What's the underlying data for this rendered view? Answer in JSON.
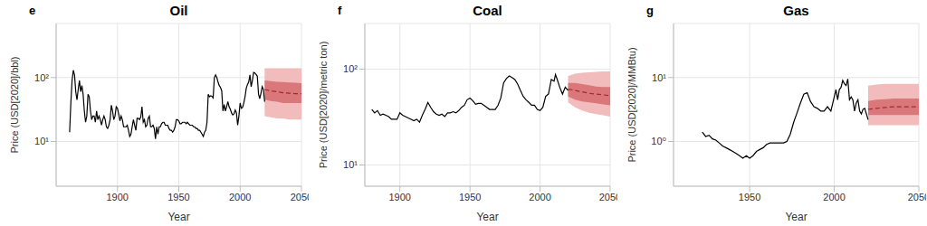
{
  "chart_data": [
    {
      "type": "line",
      "panel": "e",
      "title": "Oil",
      "x_label": "Year",
      "y_label": "Price (USD[2020]/bbl)",
      "log": "y",
      "grid": true,
      "xlim": [
        1850,
        2050
      ],
      "xticks": [
        1900,
        1950,
        2000,
        2050
      ],
      "ylim": [
        2,
        700
      ],
      "yticks": [
        {
          "value": 10,
          "label": "10¹"
        },
        {
          "value": 100,
          "label": "10²"
        }
      ],
      "color": "#000000",
      "x": [
        1861,
        1862,
        1863,
        1864,
        1865,
        1866,
        1867,
        1868,
        1869,
        1870,
        1871,
        1872,
        1873,
        1874,
        1875,
        1876,
        1877,
        1878,
        1879,
        1880,
        1881,
        1882,
        1883,
        1884,
        1885,
        1886,
        1887,
        1888,
        1889,
        1890,
        1891,
        1892,
        1893,
        1894,
        1895,
        1896,
        1897,
        1898,
        1899,
        1900,
        1901,
        1902,
        1903,
        1904,
        1905,
        1906,
        1907,
        1908,
        1909,
        1910,
        1911,
        1912,
        1913,
        1914,
        1915,
        1916,
        1917,
        1918,
        1919,
        1920,
        1921,
        1922,
        1923,
        1924,
        1925,
        1926,
        1927,
        1928,
        1929,
        1930,
        1931,
        1932,
        1933,
        1934,
        1935,
        1936,
        1937,
        1938,
        1939,
        1940,
        1941,
        1942,
        1943,
        1944,
        1945,
        1946,
        1947,
        1948,
        1949,
        1950,
        1951,
        1952,
        1953,
        1954,
        1955,
        1956,
        1957,
        1958,
        1959,
        1960,
        1961,
        1962,
        1963,
        1964,
        1965,
        1966,
        1967,
        1968,
        1969,
        1970,
        1971,
        1972,
        1973,
        1974,
        1975,
        1976,
        1977,
        1978,
        1979,
        1980,
        1981,
        1982,
        1983,
        1984,
        1985,
        1986,
        1987,
        1988,
        1989,
        1990,
        1991,
        1992,
        1993,
        1994,
        1995,
        1996,
        1997,
        1998,
        1999,
        2000,
        2001,
        2002,
        2003,
        2004,
        2005,
        2006,
        2007,
        2008,
        2009,
        2010,
        2011,
        2012,
        2013,
        2014,
        2015,
        2016,
        2017,
        2018,
        2019,
        2020
      ],
      "values": [
        14,
        40,
        90,
        130,
        110,
        60,
        45,
        65,
        90,
        60,
        75,
        55,
        30,
        20,
        25,
        55,
        50,
        30,
        22,
        25,
        25,
        20,
        30,
        22,
        25,
        22,
        18,
        22,
        25,
        22,
        17,
        16,
        18,
        22,
        37,
        30,
        22,
        25,
        35,
        33,
        27,
        21,
        25,
        22,
        17,
        17,
        17,
        18,
        15,
        12,
        13,
        17,
        22,
        18,
        15,
        23,
        23,
        22,
        24,
        35,
        20,
        22,
        17,
        18,
        23,
        25,
        17,
        17,
        18,
        16,
        11,
        17,
        13,
        17,
        17,
        19,
        20,
        20,
        18,
        18,
        18,
        16,
        15,
        15,
        14,
        15,
        17,
        22,
        22,
        21,
        19,
        19,
        20,
        20,
        20,
        19,
        20,
        19,
        18,
        18,
        18,
        17,
        17,
        16,
        16,
        15,
        15,
        14,
        13,
        12,
        14,
        15,
        20,
        55,
        50,
        52,
        51,
        48,
        100,
        110,
        100,
        85,
        75,
        70,
        62,
        30,
        38,
        30,
        35,
        42,
        35,
        32,
        28,
        26,
        27,
        31,
        28,
        18,
        25,
        40,
        33,
        34,
        40,
        50,
        68,
        78,
        85,
        110,
        72,
        90,
        120,
        118,
        112,
        105,
        55,
        47,
        57,
        72,
        65,
        42
      ],
      "forecast": {
        "x": [
          2020,
          2025,
          2030,
          2035,
          2040,
          2045,
          2050
        ],
        "values": [
          65,
          62,
          60,
          58,
          57,
          56,
          56
        ],
        "color": "#a52a2a",
        "line_style": "dashed",
        "band_inner": {
          "low": [
            45,
            43,
            42,
            40,
            40,
            40,
            40
          ],
          "high": [
            90,
            88,
            86,
            85,
            84,
            83,
            82
          ],
          "color": "#d9777b"
        },
        "band_outer": {
          "low": [
            25,
            24,
            23,
            23,
            22,
            22,
            22
          ],
          "high": [
            140,
            140,
            140,
            140,
            140,
            140,
            140
          ],
          "color": "#f2bcbc"
        }
      }
    },
    {
      "type": "line",
      "panel": "f",
      "title": "Coal",
      "x_label": "Year",
      "y_label": "Price (USD[2020]/metric ton)",
      "log": "y",
      "grid": true,
      "xlim": [
        1875,
        2050
      ],
      "xticks": [
        1900,
        1950,
        2000,
        2050
      ],
      "ylim": [
        6,
        300
      ],
      "yticks": [
        {
          "value": 10,
          "label": "10¹"
        },
        {
          "value": 100,
          "label": "10²"
        }
      ],
      "color": "#000000",
      "x": [
        1880,
        1882,
        1884,
        1886,
        1888,
        1890,
        1892,
        1894,
        1896,
        1898,
        1900,
        1902,
        1904,
        1906,
        1908,
        1910,
        1912,
        1914,
        1916,
        1918,
        1920,
        1922,
        1924,
        1926,
        1928,
        1930,
        1932,
        1934,
        1936,
        1938,
        1940,
        1942,
        1944,
        1946,
        1948,
        1950,
        1952,
        1954,
        1956,
        1958,
        1960,
        1962,
        1964,
        1966,
        1968,
        1970,
        1972,
        1974,
        1976,
        1978,
        1980,
        1982,
        1984,
        1986,
        1988,
        1990,
        1992,
        1994,
        1996,
        1998,
        2000,
        2002,
        2004,
        2006,
        2008,
        2010,
        2011,
        2012,
        2014,
        2016,
        2018,
        2020
      ],
      "values": [
        38,
        35,
        37,
        33,
        34,
        33,
        32,
        30,
        30,
        30,
        35,
        33,
        32,
        31,
        30,
        29,
        30,
        28,
        33,
        38,
        45,
        40,
        36,
        34,
        33,
        34,
        32,
        35,
        35,
        36,
        35,
        37,
        40,
        42,
        48,
        50,
        47,
        43,
        44,
        44,
        42,
        40,
        38,
        38,
        38,
        42,
        50,
        72,
        80,
        85,
        82,
        78,
        70,
        60,
        52,
        48,
        45,
        42,
        42,
        38,
        37,
        40,
        52,
        55,
        78,
        75,
        88,
        80,
        65,
        55,
        65,
        60
      ],
      "forecast": {
        "x": [
          2020,
          2025,
          2030,
          2035,
          2040,
          2045,
          2050
        ],
        "values": [
          62,
          60,
          58,
          56,
          55,
          54,
          53
        ],
        "color": "#a52a2a",
        "line_style": "dashed",
        "band_inner": {
          "low": [
            52,
            48,
            46,
            45,
            44,
            43,
            42
          ],
          "high": [
            72,
            72,
            70,
            68,
            66,
            65,
            65
          ],
          "color": "#d9777b"
        },
        "band_outer": {
          "low": [
            45,
            40,
            37,
            35,
            34,
            33,
            32
          ],
          "high": [
            85,
            90,
            92,
            93,
            94,
            95,
            95
          ],
          "color": "#f2bcbc"
        }
      }
    },
    {
      "type": "line",
      "panel": "g",
      "title": "Gas",
      "x_label": "Year",
      "y_label": "Price (USD[2020]/MMBtu)",
      "log": "y",
      "grid": true,
      "xlim": [
        1905,
        2050
      ],
      "xticks": [
        1950,
        2000,
        2050
      ],
      "ylim": [
        0.2,
        70
      ],
      "yticks": [
        {
          "value": 1,
          "label": "10⁰"
        },
        {
          "value": 10,
          "label": "10¹"
        }
      ],
      "color": "#000000",
      "x": [
        1922,
        1924,
        1926,
        1928,
        1930,
        1932,
        1934,
        1936,
        1938,
        1940,
        1942,
        1944,
        1946,
        1948,
        1950,
        1952,
        1954,
        1956,
        1958,
        1960,
        1962,
        1964,
        1966,
        1968,
        1970,
        1972,
        1974,
        1976,
        1978,
        1980,
        1982,
        1984,
        1986,
        1988,
        1990,
        1992,
        1994,
        1996,
        1998,
        2000,
        2001,
        2002,
        2003,
        2004,
        2005,
        2006,
        2007,
        2008,
        2009,
        2010,
        2011,
        2012,
        2013,
        2014,
        2015,
        2016,
        2017,
        2018,
        2019,
        2020
      ],
      "values": [
        1.4,
        1.2,
        1.25,
        1.1,
        1.05,
        0.95,
        0.85,
        0.8,
        0.75,
        0.7,
        0.65,
        0.6,
        0.55,
        0.6,
        0.55,
        0.6,
        0.7,
        0.75,
        0.8,
        0.9,
        0.95,
        0.95,
        0.95,
        0.95,
        0.95,
        1.0,
        1.3,
        2.0,
        2.8,
        4.0,
        5.5,
        5.8,
        4.2,
        3.5,
        3.3,
        3.0,
        3.0,
        3.5,
        3.0,
        5.0,
        6.5,
        4.5,
        6.5,
        7.0,
        9.0,
        8.0,
        7.5,
        9.5,
        4.5,
        5.0,
        4.5,
        3.0,
        4.0,
        4.5,
        3.0,
        2.7,
        3.2,
        3.3,
        2.7,
        2.2
      ],
      "forecast": {
        "x": [
          2020,
          2025,
          2030,
          2035,
          2040,
          2045,
          2050
        ],
        "values": [
          3.2,
          3.3,
          3.4,
          3.5,
          3.5,
          3.5,
          3.5
        ],
        "color": "#a52a2a",
        "line_style": "dashed",
        "band_inner": {
          "low": [
            2.6,
            2.6,
            2.6,
            2.6,
            2.6,
            2.6,
            2.6
          ],
          "high": [
            4.3,
            4.5,
            4.6,
            4.7,
            4.7,
            4.7,
            4.7
          ],
          "color": "#d9777b"
        },
        "band_outer": {
          "low": [
            1.8,
            1.8,
            1.8,
            1.8,
            1.8,
            1.8,
            1.8
          ],
          "high": [
            7.5,
            7.8,
            8.0,
            8.0,
            8.0,
            8.0,
            8.0
          ],
          "color": "#f2bcbc"
        }
      }
    }
  ]
}
